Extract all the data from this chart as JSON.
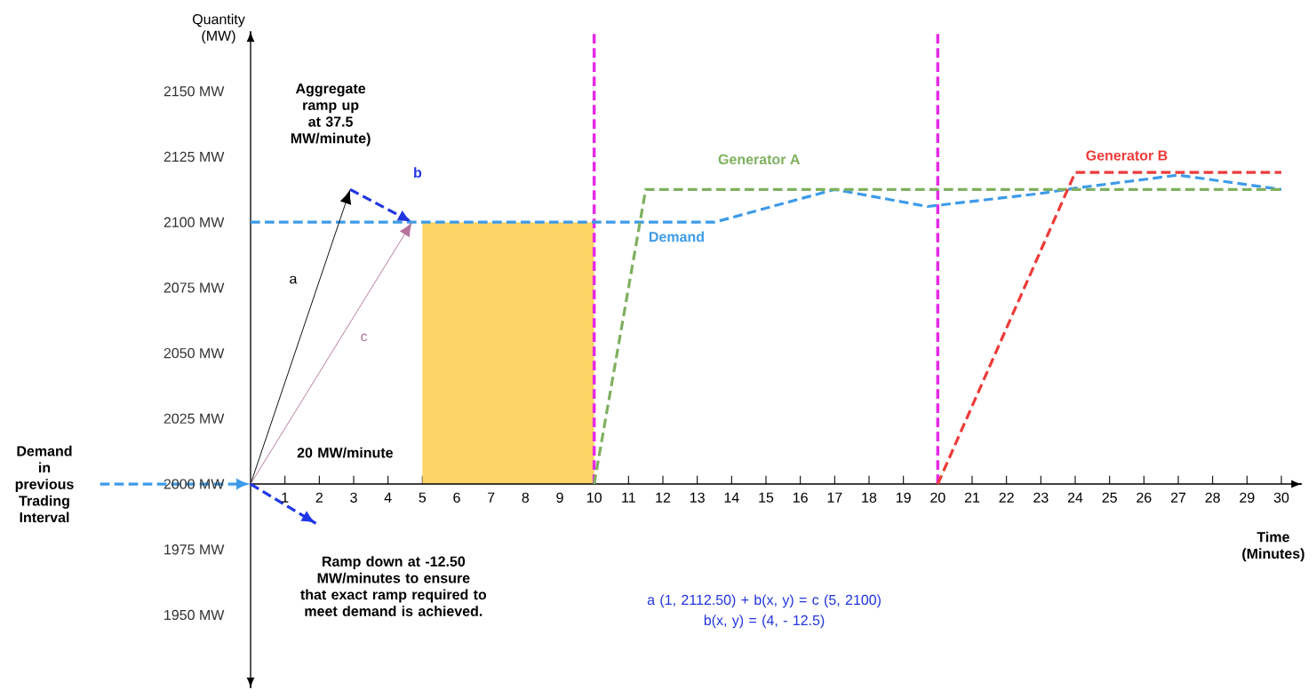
{
  "chart_data": {
    "type": "line",
    "xlabel": "Time (Minutes)",
    "ylabel": "Quantity (MW)",
    "xlim": [
      0,
      30.6
    ],
    "ylim": [
      1922,
      2173
    ],
    "xticks": [
      1,
      2,
      3,
      4,
      5,
      6,
      7,
      8,
      9,
      10,
      11,
      12,
      13,
      14,
      15,
      16,
      17,
      18,
      19,
      20,
      21,
      22,
      23,
      24,
      25,
      26,
      27,
      28,
      29,
      30
    ],
    "yticks": [
      {
        "value": 1950,
        "label": "1950 MW"
      },
      {
        "value": 1975,
        "label": "1975 MW"
      },
      {
        "value": 2000,
        "label": "2000 MW"
      },
      {
        "value": 2025,
        "label": "2025 MW"
      },
      {
        "value": 2050,
        "label": "2050 MW"
      },
      {
        "value": 2075,
        "label": "2075 MW"
      },
      {
        "value": 2100,
        "label": "2100 MW"
      },
      {
        "value": 2125,
        "label": "2125 MW"
      },
      {
        "value": 2150,
        "label": "2150 MW"
      }
    ],
    "series": [
      {
        "name": "Demand",
        "color": "#3d9be9",
        "line_style": "dashed",
        "x": [
          0,
          13.5,
          17,
          19.7,
          23,
          24,
          27,
          30
        ],
        "values": [
          2100,
          2100,
          2112.5,
          2106,
          2111,
          2113,
          2118,
          2112.5
        ]
      },
      {
        "name": "Generator A",
        "color": "#7fb05f",
        "line_style": "dashed",
        "x": [
          10,
          11.5,
          30
        ],
        "values": [
          2000,
          2112.5,
          2112.5
        ]
      },
      {
        "name": "Generator B",
        "color": "#ee3a3a",
        "line_style": "dashed",
        "x": [
          20,
          24,
          30
        ],
        "values": [
          2000,
          2119,
          2119
        ]
      },
      {
        "type": "area",
        "color": "#fdd466",
        "x": [
          5,
          10
        ],
        "values": [
          2100,
          2100
        ]
      },
      {
        "name": "a",
        "color": "#000000",
        "line_style": "solid",
        "x": [
          0,
          2.9
        ],
        "values": [
          2000,
          2112.5
        ]
      },
      {
        "name": "b",
        "color": "#2236e0",
        "line_style": "dashed",
        "x": [
          2.9,
          4.7
        ],
        "values": [
          2112.5,
          2100
        ]
      },
      {
        "name": "c",
        "color": "#b5739d",
        "line_style": "solid",
        "x": [
          0,
          4.7
        ],
        "values": [
          2000,
          2100
        ]
      },
      {
        "color": "#1f36e8",
        "line_style": "dashed",
        "x": [
          0,
          1.9
        ],
        "values": [
          2000,
          1985
        ]
      }
    ],
    "ref_lines": [
      {
        "axis": "x",
        "value": 10,
        "color": "#e629e6",
        "line_style": "dashed"
      },
      {
        "axis": "x",
        "value": 20,
        "color": "#e629e6",
        "line_style": "dashed"
      }
    ],
    "annotations": [
      "Aggregate ramp up at 37.5 MW/minute)",
      "20 MW/minute",
      "Ramp down at -12.50 MW/minutes to ensure that exact ramp required to meet demand is achieved.",
      "Demand in previous Trading Interval",
      "a (1, 2112.50) + b(x, y) = c (5, 2100)",
      "b(x, y) = (4, - 12.5)"
    ]
  }
}
